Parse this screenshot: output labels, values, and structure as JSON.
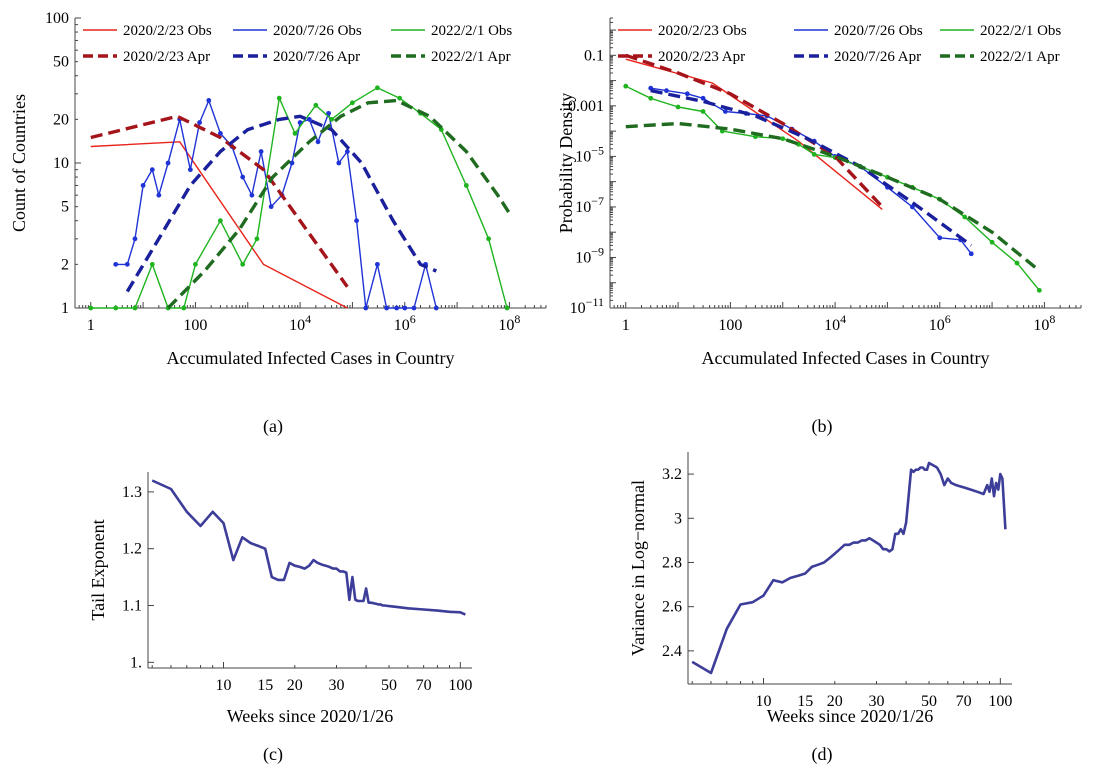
{
  "chart_data": [
    {
      "id": "a",
      "type": "line",
      "caption": "(a)",
      "xlabel": "Accumulated Infected Cases in Country",
      "ylabel": "Count of Countries",
      "xscale": "log",
      "yscale": "log",
      "xlim": [
        0.5,
        500000000
      ],
      "ylim": [
        1,
        100
      ],
      "xticks": [
        {
          "v": 1,
          "t": "1"
        },
        {
          "v": 100,
          "t": "100"
        },
        {
          "v": 10000,
          "t": "10",
          "e": "4"
        },
        {
          "v": 1000000,
          "t": "10",
          "e": "6"
        },
        {
          "v": 100000000,
          "t": "10",
          "e": "8"
        }
      ],
      "yticks": [
        {
          "v": 1,
          "t": "1"
        },
        {
          "v": 2,
          "t": "2"
        },
        {
          "v": 5,
          "t": "5"
        },
        {
          "v": 10,
          "t": "10"
        },
        {
          "v": 20,
          "t": "20"
        },
        {
          "v": 50,
          "t": "50"
        },
        {
          "v": 100,
          "t": "100"
        }
      ],
      "legend_position": "top",
      "series": [
        {
          "name": "2020/2/23 Obs",
          "color": "#e8241c",
          "style": "solid",
          "markers": false,
          "x": [
            1,
            50,
            2000,
            80000
          ],
          "y": [
            13,
            14,
            2,
            1
          ]
        },
        {
          "name": "2020/7/26 Obs",
          "color": "#1f33d6",
          "style": "solid",
          "markers": true,
          "x": [
            3,
            5,
            7,
            10,
            15,
            20,
            30,
            50,
            80,
            120,
            180,
            300,
            500,
            800,
            1200,
            1800,
            2800,
            4500,
            7000,
            10000,
            15000,
            22000,
            35000,
            55000,
            80000,
            120000,
            180000,
            300000,
            450000,
            700000,
            1000000,
            1500000,
            2500000,
            4000000
          ],
          "y": [
            2,
            2,
            3,
            7,
            9,
            6,
            10,
            20,
            9,
            19,
            27,
            16,
            13,
            8,
            6,
            12,
            5,
            6,
            10,
            19,
            20,
            14,
            22,
            10,
            12,
            4,
            1,
            2,
            1,
            1,
            1,
            1,
            2,
            1
          ]
        },
        {
          "name": "2022/2/1 Obs",
          "color": "#1fb41f",
          "style": "solid",
          "markers": true,
          "x": [
            1,
            3,
            7,
            15,
            30,
            60,
            100,
            300,
            800,
            1500,
            4000,
            8000,
            20000,
            40000,
            100000,
            300000,
            800000,
            2000000,
            5000000,
            15000000,
            40000000,
            90000000
          ],
          "y": [
            1,
            1,
            1,
            2,
            1,
            1,
            2,
            4,
            2,
            3,
            28,
            16,
            25,
            20,
            26,
            33,
            28,
            22,
            17,
            7,
            3,
            1
          ]
        },
        {
          "name": "2020/2/23 Apr",
          "color": "#a5141a",
          "style": "dash",
          "markers": false,
          "x": [
            1,
            45,
            300,
            2000,
            10000,
            80000
          ],
          "y": [
            15,
            21,
            15,
            9,
            4,
            1.4
          ]
        },
        {
          "name": "2020/7/26 Apr",
          "color": "#1a1f9c",
          "style": "dash",
          "markers": false,
          "x": [
            5,
            20,
            80,
            300,
            1000,
            4000,
            10000,
            40000,
            150000,
            600000,
            2000000,
            4000000
          ],
          "y": [
            1.3,
            3,
            7,
            12,
            17,
            20,
            21,
            17,
            10,
            4,
            2,
            1.8
          ]
        },
        {
          "name": "2022/2/1 Apr",
          "color": "#1f6b1f",
          "style": "dash",
          "markers": false,
          "x": [
            30,
            150,
            700,
            3000,
            15000,
            60000,
            200000,
            700000,
            3000000,
            15000000,
            60000000,
            100000000
          ],
          "y": [
            1,
            1.8,
            3.5,
            8,
            14,
            21,
            26,
            27,
            21,
            12,
            6,
            4.5
          ]
        }
      ]
    },
    {
      "id": "b",
      "type": "line",
      "caption": "(b)",
      "xlabel": "Accumulated Infected Cases in Country",
      "ylabel": "Probability Density",
      "xscale": "log",
      "yscale": "log",
      "xlim": [
        0.5,
        500000000
      ],
      "ylim": [
        1e-11,
        3
      ],
      "xticks": [
        {
          "v": 1,
          "t": "1"
        },
        {
          "v": 100,
          "t": "100"
        },
        {
          "v": 10000,
          "t": "10",
          "e": "4"
        },
        {
          "v": 1000000,
          "t": "10",
          "e": "6"
        },
        {
          "v": 100000000,
          "t": "10",
          "e": "8"
        }
      ],
      "yticks": [
        {
          "v": 0.1,
          "t": "0.1"
        },
        {
          "v": 0.001,
          "t": "0.001"
        },
        {
          "v": 1e-05,
          "t": "10",
          "e": "−5"
        },
        {
          "v": 1e-07,
          "t": "10",
          "e": "−7"
        },
        {
          "v": 1e-09,
          "t": "10",
          "e": "−9"
        },
        {
          "v": 1e-11,
          "t": "10",
          "e": "−11"
        }
      ],
      "legend_position": "top",
      "series": [
        {
          "name": "2020/2/23 Obs",
          "color": "#e8241c",
          "style": "solid",
          "markers": false,
          "x": [
            1,
            45,
            2000,
            80000
          ],
          "y": [
            0.07,
            0.008,
            4e-05,
            8e-08
          ]
        },
        {
          "name": "2020/7/26 Obs",
          "color": "#1f33d6",
          "style": "solid",
          "markers": true,
          "x": [
            3,
            6,
            15,
            30,
            80,
            200,
            500,
            1500,
            4000,
            10000,
            30000,
            100000,
            300000,
            1000000,
            2500000,
            4000000
          ],
          "y": [
            0.005,
            0.004,
            0.003,
            0.002,
            0.0006,
            0.0005,
            0.0004,
            0.00012,
            4e-05,
            1e-05,
            4e-06,
            6e-07,
            1e-07,
            6e-09,
            5e-09,
            1.4e-09
          ]
        },
        {
          "name": "2022/2/1 Obs",
          "color": "#1fb41f",
          "style": "solid",
          "markers": true,
          "x": [
            1,
            3,
            10,
            30,
            70,
            300,
            1000,
            2000,
            4000,
            10000,
            30000,
            100000,
            300000,
            1000000,
            3000000,
            10000000,
            30000000,
            80000000
          ],
          "y": [
            0.006,
            0.002,
            0.0009,
            0.0006,
            0.0001,
            6e-05,
            5e-05,
            3e-05,
            1.2e-05,
            9e-06,
            4e-06,
            1.5e-06,
            6e-07,
            2e-07,
            4e-08,
            4e-09,
            6e-10,
            5e-11
          ]
        },
        {
          "name": "2020/2/23 Apr",
          "color": "#a5141a",
          "style": "dash",
          "markers": false,
          "x": [
            1,
            10,
            100,
            1000,
            10000,
            80000
          ],
          "y": [
            0.1,
            0.02,
            0.003,
            0.0002,
            1e-05,
            1e-07
          ]
        },
        {
          "name": "2020/7/26 Apr",
          "color": "#1a1f9c",
          "style": "dash",
          "markers": false,
          "x": [
            3,
            30,
            300,
            3000,
            30000,
            300000,
            4000000
          ],
          "y": [
            0.004,
            0.0015,
            0.0004,
            5e-05,
            4e-06,
            1.5e-07,
            3e-09
          ]
        },
        {
          "name": "2022/2/1 Apr",
          "color": "#1f6b1f",
          "style": "dash",
          "markers": false,
          "x": [
            1,
            10,
            100,
            1000,
            10000,
            100000,
            1000000,
            10000000,
            80000000
          ],
          "y": [
            0.00015,
            0.0002,
            0.00012,
            5e-05,
            1e-05,
            1.5e-06,
            2e-07,
            1e-08,
            3e-10
          ]
        }
      ]
    },
    {
      "id": "c",
      "type": "line",
      "caption": "(c)",
      "xlabel": "Weeks since 2020/1/26",
      "ylabel": "Tail Exponent",
      "xscale": "log",
      "yscale": "linear",
      "xlim": [
        4.8,
        112
      ],
      "ylim": [
        0.99,
        1.335
      ],
      "xticks": [
        {
          "v": 10,
          "t": "10"
        },
        {
          "v": 15,
          "t": "15"
        },
        {
          "v": 20,
          "t": "20"
        },
        {
          "v": 30,
          "t": "30"
        },
        {
          "v": 50,
          "t": "50"
        },
        {
          "v": 70,
          "t": "70"
        },
        {
          "v": 100,
          "t": "100"
        }
      ],
      "yticks": [
        {
          "v": 1.0,
          "t": "1."
        },
        {
          "v": 1.1,
          "t": "1.1"
        },
        {
          "v": 1.2,
          "t": "1.2"
        },
        {
          "v": 1.3,
          "t": "1.3"
        }
      ],
      "series": [
        {
          "name": "",
          "color": "#3d3d9a",
          "style": "solid",
          "markers": false,
          "x": [
            5,
            6,
            7,
            8,
            9,
            10,
            11,
            12,
            13,
            14,
            15,
            16,
            17,
            18,
            19,
            20,
            21,
            22,
            23,
            24,
            25,
            26,
            27,
            28,
            29,
            30,
            31,
            32,
            33,
            34,
            35,
            36,
            37,
            38,
            39,
            40,
            41,
            42,
            43,
            44,
            45,
            46,
            47,
            48,
            50,
            55,
            60,
            70,
            80,
            90,
            100,
            105
          ],
          "y": [
            1.32,
            1.305,
            1.265,
            1.24,
            1.265,
            1.245,
            1.18,
            1.22,
            1.21,
            1.205,
            1.2,
            1.15,
            1.145,
            1.145,
            1.175,
            1.17,
            1.168,
            1.165,
            1.17,
            1.18,
            1.175,
            1.172,
            1.17,
            1.168,
            1.165,
            1.165,
            1.16,
            1.16,
            1.158,
            1.11,
            1.15,
            1.11,
            1.108,
            1.108,
            1.108,
            1.13,
            1.105,
            1.105,
            1.104,
            1.103,
            1.102,
            1.102,
            1.1,
            1.1,
            1.099,
            1.097,
            1.095,
            1.093,
            1.091,
            1.089,
            1.088,
            1.084
          ]
        }
      ]
    },
    {
      "id": "d",
      "type": "line",
      "caption": "(d)",
      "xlabel": "Weeks since 2020/1/26",
      "ylabel": "Variance in Log−normal",
      "xscale": "log",
      "yscale": "linear",
      "xlim": [
        4.8,
        112
      ],
      "ylim": [
        2.25,
        3.3
      ],
      "xticks": [
        {
          "v": 10,
          "t": "10"
        },
        {
          "v": 15,
          "t": "15"
        },
        {
          "v": 20,
          "t": "20"
        },
        {
          "v": 30,
          "t": "30"
        },
        {
          "v": 50,
          "t": "50"
        },
        {
          "v": 70,
          "t": "70"
        },
        {
          "v": 100,
          "t": "100"
        }
      ],
      "yticks": [
        {
          "v": 2.4,
          "t": "2.4"
        },
        {
          "v": 2.6,
          "t": "2.6"
        },
        {
          "v": 2.8,
          "t": "2.8"
        },
        {
          "v": 3.0,
          "t": "3"
        },
        {
          "v": 3.2,
          "t": "3.2"
        }
      ],
      "series": [
        {
          "name": "",
          "color": "#3d3d9a",
          "style": "solid",
          "markers": false,
          "x": [
            5,
            6,
            7,
            8,
            9,
            10,
            11,
            12,
            13,
            14,
            15,
            16,
            17,
            18,
            19,
            20,
            21,
            22,
            23,
            24,
            25,
            26,
            27,
            28,
            29,
            30,
            31,
            32,
            33,
            34,
            35,
            36,
            37,
            38,
            39,
            40,
            41,
            42,
            43,
            44,
            45,
            46,
            47,
            48,
            49,
            50,
            52,
            54,
            56,
            58,
            60,
            62,
            65,
            70,
            75,
            80,
            85,
            88,
            90,
            92,
            94,
            96,
            98,
            100,
            102,
            105
          ],
          "y": [
            2.35,
            2.3,
            2.5,
            2.61,
            2.62,
            2.65,
            2.72,
            2.71,
            2.73,
            2.74,
            2.75,
            2.78,
            2.79,
            2.8,
            2.82,
            2.84,
            2.86,
            2.88,
            2.88,
            2.89,
            2.89,
            2.9,
            2.9,
            2.91,
            2.9,
            2.89,
            2.88,
            2.86,
            2.86,
            2.85,
            2.86,
            2.93,
            2.93,
            2.95,
            2.93,
            2.98,
            3.1,
            3.22,
            3.21,
            3.22,
            3.22,
            3.23,
            3.23,
            3.22,
            3.22,
            3.25,
            3.24,
            3.23,
            3.2,
            3.15,
            3.18,
            3.16,
            3.15,
            3.14,
            3.13,
            3.12,
            3.11,
            3.15,
            3.12,
            3.18,
            3.1,
            3.16,
            3.13,
            3.2,
            3.18,
            2.95
          ]
        }
      ]
    }
  ]
}
